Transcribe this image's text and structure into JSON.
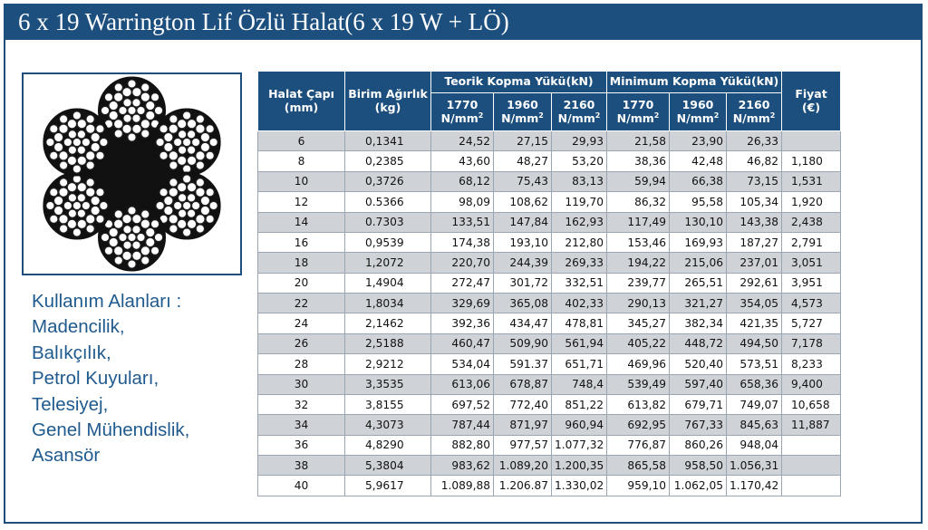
{
  "title": "6 x 19 Warrington Lif Özlü Halat(6 x 19 W + LÖ)",
  "usage": {
    "lines": [
      "Kullanım Alanları :",
      "Madencilik,",
      "Balıkçılık,",
      "Petrol Kuyuları,",
      "Telesiyej,",
      "Genel Mühendislik,",
      "Asansör"
    ]
  },
  "colors": {
    "brand": "#1c4f7d",
    "row_alt": "#cfd3d8",
    "usage_text": "#1f5a8e"
  },
  "table": {
    "headers": {
      "diameter": [
        "Halat Çapı",
        "(mm)"
      ],
      "weight": [
        "Birim Ağırlık",
        "(kg)"
      ],
      "theoretical": "Teorik Kopma Yükü(kN)",
      "minimum": "Minimum Kopma Yükü(kN)",
      "price": [
        "Fiyat",
        "(€)"
      ],
      "grades": [
        "1770",
        "1960",
        "2160",
        "1770",
        "1960",
        "2160"
      ],
      "grade_unit": "N/mm",
      "grade_unit_sup": "2"
    },
    "rows": [
      {
        "d": "6",
        "w": "0,1341",
        "t1": "24,52",
        "t2": "27,15",
        "t3": "29,93",
        "m1": "21,58",
        "m2": "23,90",
        "m3": "26,33",
        "p": ""
      },
      {
        "d": "8",
        "w": "0,2385",
        "t1": "43,60",
        "t2": "48,27",
        "t3": "53,20",
        "m1": "38,36",
        "m2": "42,48",
        "m3": "46,82",
        "p": "1,180"
      },
      {
        "d": "10",
        "w": "0,3726",
        "t1": "68,12",
        "t2": "75,43",
        "t3": "83,13",
        "m1": "59,94",
        "m2": "66,38",
        "m3": "73,15",
        "p": "1,531"
      },
      {
        "d": "12",
        "w": "0.5366",
        "t1": "98,09",
        "t2": "108,62",
        "t3": "119,70",
        "m1": "86,32",
        "m2": "95,58",
        "m3": "105,34",
        "p": "1,920"
      },
      {
        "d": "14",
        "w": "0.7303",
        "t1": "133,51",
        "t2": "147,84",
        "t3": "162,93",
        "m1": "117,49",
        "m2": "130,10",
        "m3": "143,38",
        "p": "2,438"
      },
      {
        "d": "16",
        "w": "0,9539",
        "t1": "174,38",
        "t2": "193,10",
        "t3": "212,80",
        "m1": "153,46",
        "m2": "169,93",
        "m3": "187,27",
        "p": "2,791"
      },
      {
        "d": "18",
        "w": "1,2072",
        "t1": "220,70",
        "t2": "244,39",
        "t3": "269,33",
        "m1": "194,22",
        "m2": "215,06",
        "m3": "237,01",
        "p": "3,051"
      },
      {
        "d": "20",
        "w": "1,4904",
        "t1": "272,47",
        "t2": "301,72",
        "t3": "332,51",
        "m1": "239,77",
        "m2": "265,51",
        "m3": "292,61",
        "p": "3,951"
      },
      {
        "d": "22",
        "w": "1,8034",
        "t1": "329,69",
        "t2": "365,08",
        "t3": "402,33",
        "m1": "290,13",
        "m2": "321,27",
        "m3": "354,05",
        "p": "4,573"
      },
      {
        "d": "24",
        "w": "2,1462",
        "t1": "392,36",
        "t2": "434,47",
        "t3": "478,81",
        "m1": "345,27",
        "m2": "382,34",
        "m3": "421,35",
        "p": "5,727"
      },
      {
        "d": "26",
        "w": "2,5188",
        "t1": "460,47",
        "t2": "509,90",
        "t3": "561,94",
        "m1": "405,22",
        "m2": "448,72",
        "m3": "494,50",
        "p": "7,178"
      },
      {
        "d": "28",
        "w": "2,9212",
        "t1": "534,04",
        "t2": "591.37",
        "t3": "651,71",
        "m1": "469,96",
        "m2": "520,40",
        "m3": "573,51",
        "p": "8,233"
      },
      {
        "d": "30",
        "w": "3,3535",
        "t1": "613,06",
        "t2": "678,87",
        "t3": "748,4",
        "m1": "539,49",
        "m2": "597,40",
        "m3": "658,36",
        "p": "9,400"
      },
      {
        "d": "32",
        "w": "3,8155",
        "t1": "697,52",
        "t2": "772,40",
        "t3": "851,22",
        "m1": "613,82",
        "m2": "679,71",
        "m3": "749,07",
        "p": "10,658"
      },
      {
        "d": "34",
        "w": "4,3073",
        "t1": "787,44",
        "t2": "871,97",
        "t3": "960,94",
        "m1": "692,95",
        "m2": "767,33",
        "m3": "845,63",
        "p": "11,887"
      },
      {
        "d": "36",
        "w": "4,8290",
        "t1": "882,80",
        "t2": "977,57",
        "t3": "1.077,32",
        "m1": "776,87",
        "m2": "860,26",
        "m3": "948,04",
        "p": ""
      },
      {
        "d": "38",
        "w": "5,3804",
        "t1": "983,62",
        "t2": "1.089,20",
        "t3": "1.200,35",
        "m1": "865,58",
        "m2": "958,50",
        "m3": "1.056,31",
        "p": ""
      },
      {
        "d": "40",
        "w": "5,9617",
        "t1": "1.089,88",
        "t2": "1.206.87",
        "t3": "1.330,02",
        "m1": "959,10",
        "m2": "1.062,05",
        "m3": "1.170,42",
        "p": ""
      }
    ]
  }
}
